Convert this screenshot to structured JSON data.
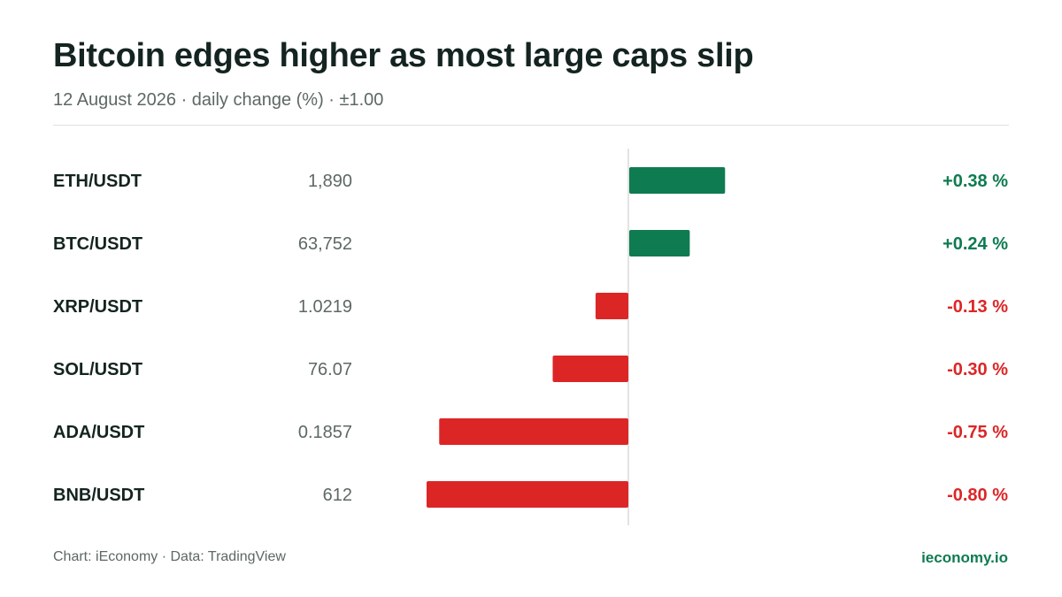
{
  "header": {
    "title": "Bitcoin edges higher as most large caps slip",
    "subtitle": "12 August 2026 · daily change (%) · ±1.00"
  },
  "footer": {
    "credit": "Chart: iEconomy · Data: TradingView",
    "brand": "ieconomy.io"
  },
  "colors": {
    "positive": "#0f7b51",
    "negative": "#dc2626",
    "brand": "#0f7b51",
    "axis": "#d9dcdb"
  },
  "chart_data": {
    "type": "bar",
    "orientation": "horizontal",
    "xlim": [
      -1.0,
      1.0
    ],
    "unit": "%",
    "categories": [
      "ETH/USDT",
      "BTC/USDT",
      "XRP/USDT",
      "SOL/USDT",
      "ADA/USDT",
      "BNB/USDT"
    ],
    "prices": [
      "1,890",
      "63,752",
      "1.0219",
      "76.07",
      "0.1857",
      "612"
    ],
    "values": [
      0.38,
      0.24,
      -0.13,
      -0.3,
      -0.75,
      -0.8
    ],
    "value_labels": [
      "+0.38 %",
      "+0.24 %",
      "-0.13 %",
      "-0.30 %",
      "-0.75 %",
      "-0.80 %"
    ]
  }
}
